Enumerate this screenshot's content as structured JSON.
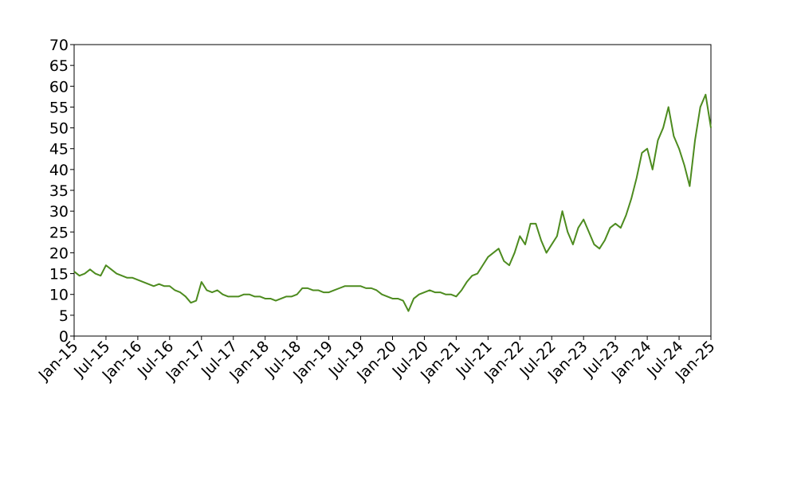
{
  "chart_data": {
    "type": "line",
    "x": [
      "2015-01",
      "2015-02",
      "2015-03",
      "2015-04",
      "2015-05",
      "2015-06",
      "2015-07",
      "2015-08",
      "2015-09",
      "2015-10",
      "2015-11",
      "2015-12",
      "2016-01",
      "2016-02",
      "2016-03",
      "2016-04",
      "2016-05",
      "2016-06",
      "2016-07",
      "2016-08",
      "2016-09",
      "2016-10",
      "2016-11",
      "2016-12",
      "2017-01",
      "2017-02",
      "2017-03",
      "2017-04",
      "2017-05",
      "2017-06",
      "2017-07",
      "2017-08",
      "2017-09",
      "2017-10",
      "2017-11",
      "2017-12",
      "2018-01",
      "2018-02",
      "2018-03",
      "2018-04",
      "2018-05",
      "2018-06",
      "2018-07",
      "2018-08",
      "2018-09",
      "2018-10",
      "2018-11",
      "2018-12",
      "2019-01",
      "2019-02",
      "2019-03",
      "2019-04",
      "2019-05",
      "2019-06",
      "2019-07",
      "2019-08",
      "2019-09",
      "2019-10",
      "2019-11",
      "2019-12",
      "2020-01",
      "2020-02",
      "2020-03",
      "2020-04",
      "2020-05",
      "2020-06",
      "2020-07",
      "2020-08",
      "2020-09",
      "2020-10",
      "2020-11",
      "2020-12",
      "2021-01",
      "2021-02",
      "2021-03",
      "2021-04",
      "2021-05",
      "2021-06",
      "2021-07",
      "2021-08",
      "2021-09",
      "2021-10",
      "2021-11",
      "2021-12",
      "2022-01",
      "2022-02",
      "2022-03",
      "2022-04",
      "2022-05",
      "2022-06",
      "2022-07",
      "2022-08",
      "2022-09",
      "2022-10",
      "2022-11",
      "2022-12",
      "2023-01",
      "2023-02",
      "2023-03",
      "2023-04",
      "2023-05",
      "2023-06",
      "2023-07",
      "2023-08",
      "2023-09",
      "2023-10",
      "2023-11",
      "2023-12",
      "2024-01",
      "2024-02",
      "2024-03",
      "2024-04",
      "2024-05",
      "2024-06",
      "2024-07",
      "2024-08",
      "2024-09",
      "2024-10",
      "2024-11",
      "2024-12",
      "2025-01"
    ],
    "series": [
      {
        "color": "#4d8b1f",
        "values": [
          15.5,
          14.5,
          15,
          16,
          15,
          14.5,
          17,
          16,
          15,
          14.5,
          14,
          14,
          13.5,
          13,
          12.5,
          12,
          12.5,
          12,
          12,
          11,
          10.5,
          9.5,
          8,
          8.5,
          13,
          11,
          10.5,
          11,
          10,
          9.5,
          9.5,
          9.5,
          10,
          10,
          9.5,
          9.5,
          9,
          9,
          8.5,
          9,
          9.5,
          9.5,
          10,
          11.5,
          11.5,
          11,
          11,
          10.5,
          10.5,
          11,
          11.5,
          12,
          12,
          12,
          12,
          11.5,
          11.5,
          11,
          10,
          9.5,
          9,
          9,
          8.5,
          6,
          9,
          10,
          10.5,
          11,
          10.5,
          10.5,
          10,
          10,
          9.5,
          11,
          13,
          14.5,
          15,
          17,
          19,
          20,
          21,
          18,
          17,
          20,
          24,
          22,
          27,
          27,
          23,
          20,
          22,
          24,
          30,
          25,
          22,
          26,
          28,
          25,
          22,
          21,
          23,
          26,
          27,
          26,
          29,
          33,
          38,
          44,
          45,
          40,
          47,
          50,
          55,
          48,
          45,
          41,
          36,
          47,
          55,
          58,
          50
        ]
      }
    ],
    "xlim": [
      "2015-01",
      "2025-01"
    ],
    "xticks": [
      {
        "value": "2015-01",
        "label": "Jan-15"
      },
      {
        "value": "2015-07",
        "label": "Jul-15"
      },
      {
        "value": "2016-01",
        "label": "Jan-16"
      },
      {
        "value": "2016-07",
        "label": "Jul-16"
      },
      {
        "value": "2017-01",
        "label": "Jan-17"
      },
      {
        "value": "2017-07",
        "label": "Jul-17"
      },
      {
        "value": "2018-01",
        "label": "Jan-18"
      },
      {
        "value": "2018-07",
        "label": "Jul-18"
      },
      {
        "value": "2019-01",
        "label": "Jan-19"
      },
      {
        "value": "2019-07",
        "label": "Jul-19"
      },
      {
        "value": "2020-01",
        "label": "Jan-20"
      },
      {
        "value": "2020-07",
        "label": "Jul-20"
      },
      {
        "value": "2021-01",
        "label": "Jan-21"
      },
      {
        "value": "2021-07",
        "label": "Jul-21"
      },
      {
        "value": "2022-01",
        "label": "Jan-22"
      },
      {
        "value": "2022-07",
        "label": "Jul-22"
      },
      {
        "value": "2023-01",
        "label": "Jan-23"
      },
      {
        "value": "2023-07",
        "label": "Jul-23"
      },
      {
        "value": "2024-01",
        "label": "Jan-24"
      },
      {
        "value": "2024-07",
        "label": "Jul-24"
      },
      {
        "value": "2025-01",
        "label": "Jan-25"
      }
    ],
    "ylim": [
      0,
      70
    ],
    "yticks": [
      0,
      5,
      10,
      15,
      20,
      25,
      30,
      35,
      40,
      45,
      50,
      55,
      60,
      65,
      70
    ]
  }
}
